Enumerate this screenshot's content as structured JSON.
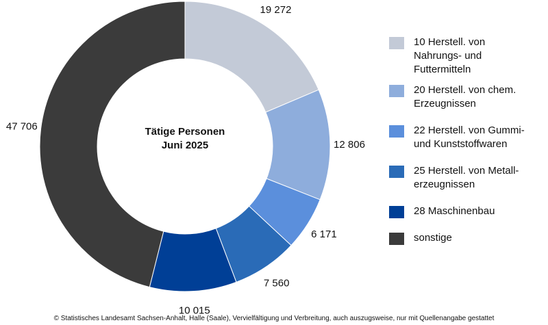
{
  "chart_data": {
    "type": "pie",
    "variant": "donut",
    "center_title": [
      "Tätige Personen",
      "Juni 2025"
    ],
    "categories": [
      "10 Herstell. von\nNahrungs- und\nFuttermitteln",
      "20 Herstell. von chem.\nErzeugnissen",
      "22 Herstell. von Gummi-\nund Kunststoffwaren",
      "25 Herstell. von Metall-\nerzeugnissen",
      "28 Maschinenbau",
      "sonstige"
    ],
    "values": [
      19272,
      12806,
      6171,
      7560,
      10015,
      47706
    ],
    "value_labels": [
      "19 272",
      "12 806",
      "6 171",
      "7 560",
      "10 015",
      "47 706"
    ],
    "colors": [
      "#c3cad7",
      "#8eaddc",
      "#5b8fdc",
      "#2a6bb7",
      "#003f96",
      "#3b3b3b"
    ],
    "legend_position": "right"
  },
  "footer": "© Statistisches Landesamt Sachsen-Anhalt, Halle (Saale), Vervielfältigung und Verbreitung, auch auszugsweise, nur mit Quellenangabe gestattet"
}
